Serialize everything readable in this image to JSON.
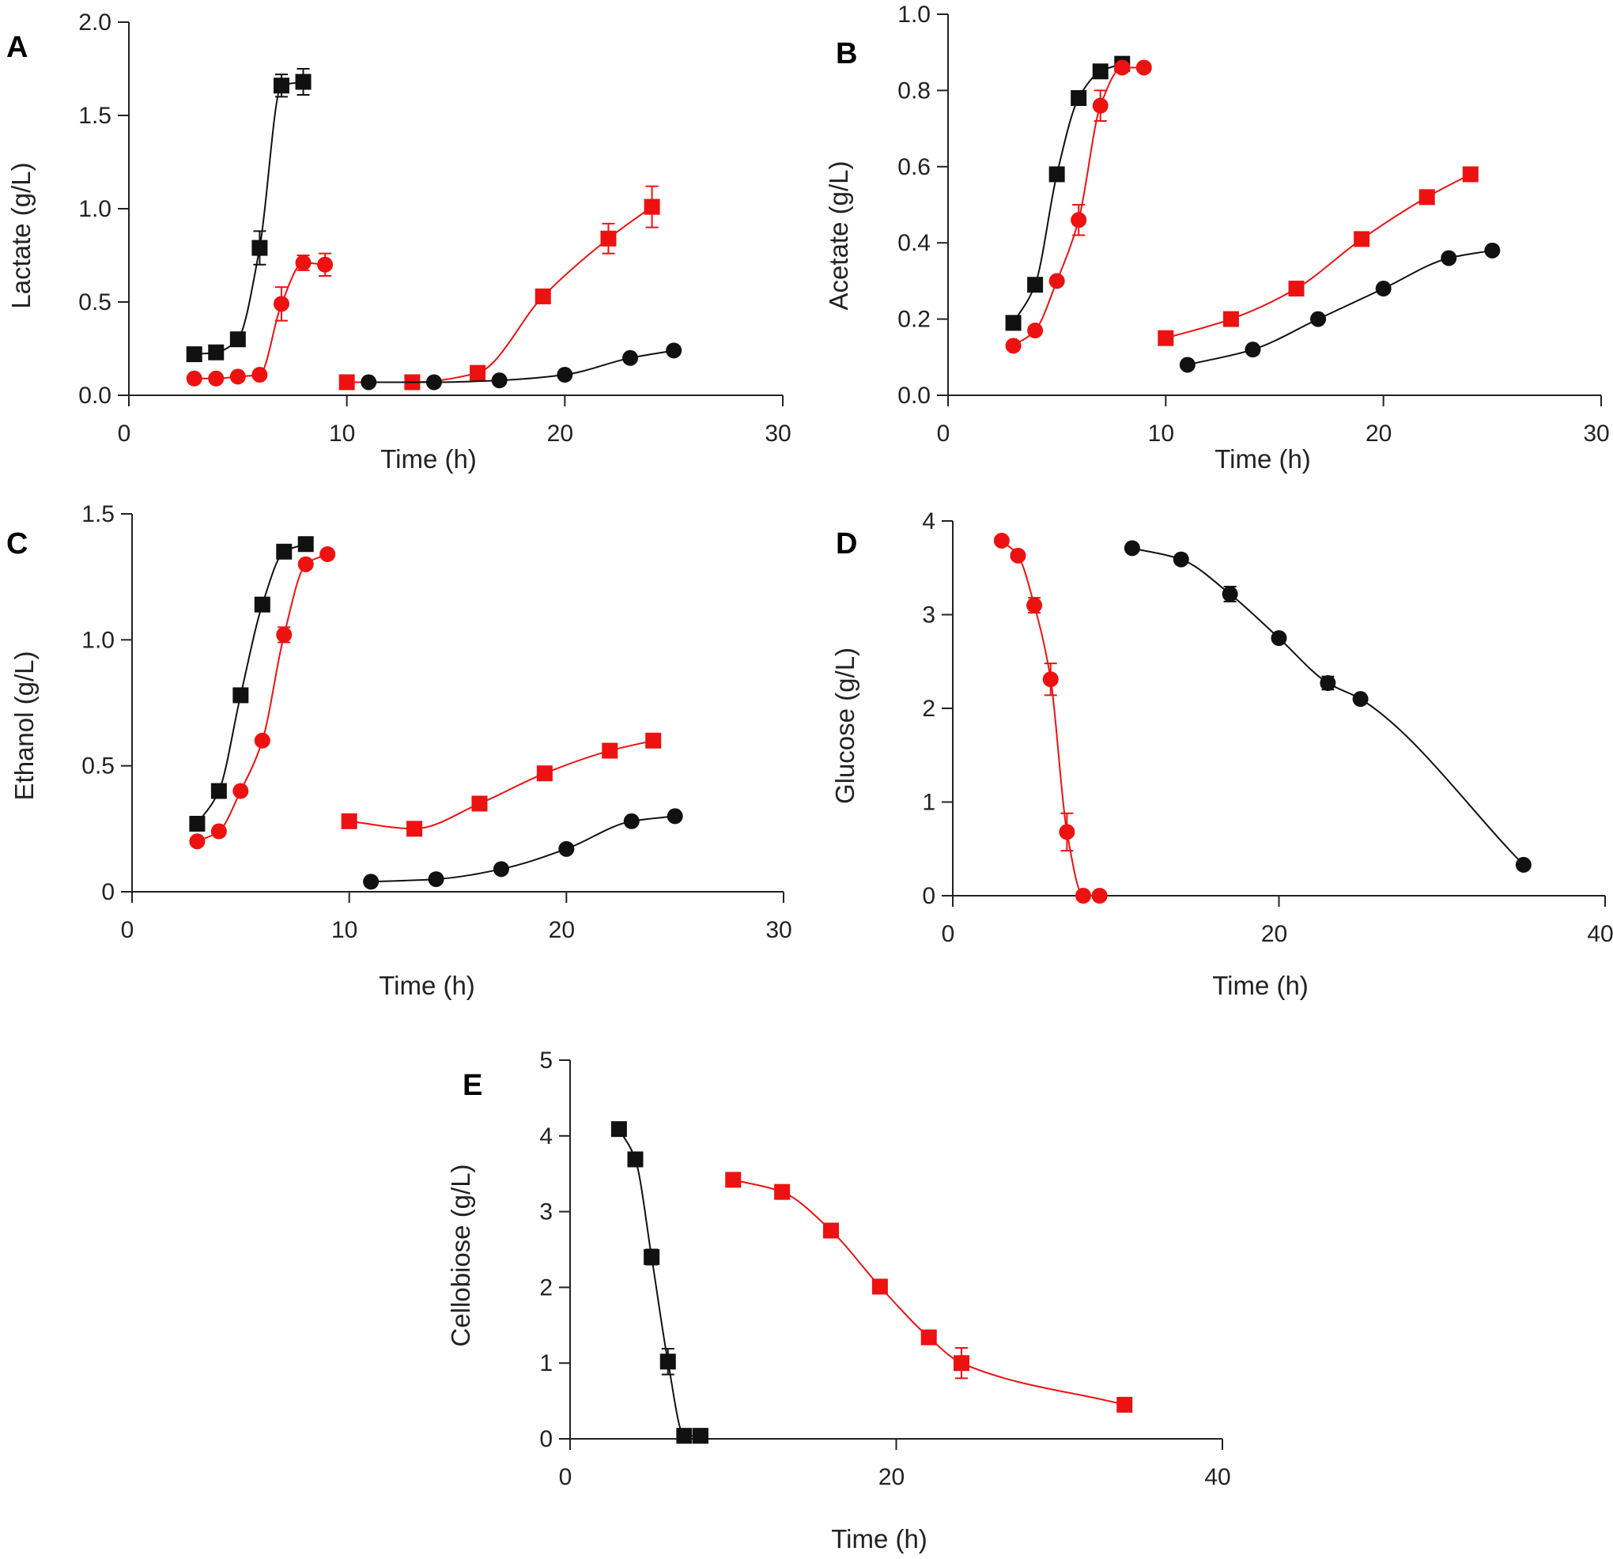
{
  "colors": {
    "black": "#111111",
    "red": "#ee1111"
  },
  "chart_data": [
    {
      "panel": "A",
      "type": "line",
      "xlabel": "Time (h)",
      "ylabel": "Lactate (g/L)",
      "xlim": [
        0,
        30
      ],
      "ylim": [
        0,
        2.0
      ],
      "xticks": [
        "0",
        "10",
        "20",
        "30"
      ],
      "yticks": [
        "0.0",
        "0.5",
        "1.0",
        "1.5",
        "2.0"
      ],
      "series": [
        {
          "name": "black-squares",
          "color": "#111111",
          "marker": "square",
          "x": [
            3,
            4,
            5,
            6,
            7,
            8
          ],
          "y": [
            0.22,
            0.23,
            0.3,
            0.79,
            1.66,
            1.68
          ],
          "err": [
            0,
            0,
            0.03,
            0.09,
            0.06,
            0.07
          ]
        },
        {
          "name": "red-circles",
          "color": "#ee1111",
          "marker": "circle",
          "x": [
            3,
            4,
            5,
            6,
            7,
            8,
            9
          ],
          "y": [
            0.09,
            0.09,
            0.1,
            0.11,
            0.49,
            0.71,
            0.7
          ],
          "err": [
            0,
            0,
            0,
            0,
            0.09,
            0.04,
            0.06
          ]
        },
        {
          "name": "red-squares",
          "color": "#ee1111",
          "marker": "square",
          "x": [
            10,
            13,
            16,
            19,
            22,
            24
          ],
          "y": [
            0.07,
            0.07,
            0.12,
            0.53,
            0.84,
            1.01
          ],
          "err": [
            0,
            0,
            0,
            0,
            0.08,
            0.11
          ]
        },
        {
          "name": "black-circles",
          "color": "#111111",
          "marker": "circle",
          "x": [
            11,
            14,
            17,
            20,
            23,
            25
          ],
          "y": [
            0.07,
            0.07,
            0.08,
            0.11,
            0.2,
            0.24
          ],
          "err": [
            0,
            0,
            0,
            0,
            0,
            0
          ]
        }
      ]
    },
    {
      "panel": "B",
      "type": "line",
      "xlabel": "Time (h)",
      "ylabel": "Acetate (g/L)",
      "xlim": [
        0,
        30
      ],
      "ylim": [
        0,
        1.0
      ],
      "xticks": [
        "0",
        "10",
        "20",
        "30"
      ],
      "yticks": [
        "0.0",
        "0.2",
        "0.4",
        "0.6",
        "0.8",
        "1.0"
      ],
      "series": [
        {
          "name": "black-squares",
          "color": "#111111",
          "marker": "square",
          "x": [
            3,
            4,
            5,
            6,
            7,
            8
          ],
          "y": [
            0.19,
            0.29,
            0.58,
            0.78,
            0.85,
            0.87
          ],
          "err": [
            0,
            0,
            0,
            0,
            0,
            0
          ]
        },
        {
          "name": "red-circles",
          "color": "#ee1111",
          "marker": "circle",
          "x": [
            3,
            4,
            5,
            6,
            7,
            8,
            9
          ],
          "y": [
            0.13,
            0.17,
            0.3,
            0.46,
            0.76,
            0.86,
            0.86
          ],
          "err": [
            0,
            0,
            0,
            0.04,
            0.04,
            0,
            0
          ]
        },
        {
          "name": "red-squares",
          "color": "#ee1111",
          "marker": "square",
          "x": [
            10,
            13,
            16,
            19,
            22,
            24
          ],
          "y": [
            0.15,
            0.2,
            0.28,
            0.41,
            0.52,
            0.58
          ],
          "err": [
            0,
            0,
            0,
            0,
            0,
            0
          ]
        },
        {
          "name": "black-circles",
          "color": "#111111",
          "marker": "circle",
          "x": [
            11,
            14,
            17,
            20,
            23,
            25
          ],
          "y": [
            0.08,
            0.12,
            0.2,
            0.28,
            0.36,
            0.38
          ],
          "err": [
            0,
            0,
            0,
            0,
            0,
            0
          ]
        }
      ]
    },
    {
      "panel": "C",
      "type": "line",
      "xlabel": "Time (h)",
      "ylabel": "Ethanol (g/L)",
      "xlim": [
        0,
        30
      ],
      "ylim": [
        0,
        1.5
      ],
      "xticks": [
        "0",
        "10",
        "20",
        "30"
      ],
      "yticks": [
        "0",
        "0.5",
        "1.0",
        "1.5"
      ],
      "series": [
        {
          "name": "black-squares",
          "color": "#111111",
          "marker": "square",
          "x": [
            3,
            4,
            5,
            6,
            7,
            8
          ],
          "y": [
            0.27,
            0.4,
            0.78,
            1.14,
            1.35,
            1.38
          ],
          "err": [
            0,
            0,
            0,
            0,
            0,
            0
          ]
        },
        {
          "name": "red-circles",
          "color": "#ee1111",
          "marker": "circle",
          "x": [
            3,
            4,
            5,
            6,
            7,
            8,
            9
          ],
          "y": [
            0.2,
            0.24,
            0.4,
            0.6,
            1.02,
            1.3,
            1.34
          ],
          "err": [
            0,
            0,
            0,
            0,
            0.03,
            0,
            0
          ]
        },
        {
          "name": "red-squares",
          "color": "#ee1111",
          "marker": "square",
          "x": [
            10,
            13,
            16,
            19,
            22,
            24
          ],
          "y": [
            0.28,
            0.25,
            0.35,
            0.47,
            0.56,
            0.6
          ],
          "err": [
            0,
            0,
            0,
            0,
            0,
            0
          ]
        },
        {
          "name": "black-circles",
          "color": "#111111",
          "marker": "circle",
          "x": [
            11,
            14,
            17,
            20,
            23,
            25
          ],
          "y": [
            0.04,
            0.05,
            0.09,
            0.17,
            0.28,
            0.3
          ],
          "err": [
            0,
            0,
            0,
            0,
            0,
            0
          ]
        }
      ]
    },
    {
      "panel": "D",
      "type": "line",
      "xlabel": "Time (h)",
      "ylabel": "Glucose (g/L)",
      "xlim": [
        0,
        40
      ],
      "ylim": [
        0,
        4
      ],
      "xticks": [
        "0",
        "20",
        "40"
      ],
      "yticks": [
        "0",
        "1",
        "2",
        "3",
        "4"
      ],
      "series": [
        {
          "name": "red-circles",
          "color": "#ee1111",
          "marker": "circle",
          "x": [
            3,
            4,
            5,
            6,
            7,
            8,
            9
          ],
          "y": [
            3.79,
            3.63,
            3.1,
            2.31,
            0.68,
            0.0,
            0.0
          ],
          "err": [
            0,
            0,
            0.08,
            0.17,
            0.2,
            0,
            0
          ]
        },
        {
          "name": "black-circles",
          "color": "#111111",
          "marker": "circle",
          "x": [
            11,
            14,
            17,
            20,
            23,
            25,
            35
          ],
          "y": [
            3.71,
            3.59,
            3.22,
            2.75,
            2.27,
            2.1,
            0.33
          ],
          "err": [
            0,
            0,
            0.08,
            0,
            0.07,
            0,
            0
          ]
        }
      ]
    },
    {
      "panel": "E",
      "type": "line",
      "xlabel": "Time (h)",
      "ylabel": "Cellobiose (g/L)",
      "xlim": [
        0,
        40
      ],
      "ylim": [
        0,
        5
      ],
      "xticks": [
        "0",
        "20",
        "40"
      ],
      "yticks": [
        "0",
        "1",
        "2",
        "3",
        "4",
        "5"
      ],
      "series": [
        {
          "name": "black-squares",
          "color": "#111111",
          "marker": "square",
          "x": [
            3,
            4,
            5,
            6,
            7,
            8
          ],
          "y": [
            4.09,
            3.69,
            2.4,
            1.02,
            0.04,
            0.04
          ],
          "err": [
            0,
            0,
            0.1,
            0.17,
            0,
            0
          ]
        },
        {
          "name": "red-squares",
          "color": "#ee1111",
          "marker": "square",
          "x": [
            10,
            13,
            16,
            19,
            22,
            24,
            34
          ],
          "y": [
            3.42,
            3.26,
            2.75,
            2.01,
            1.34,
            1.0,
            0.45
          ],
          "err": [
            0,
            0,
            0,
            0,
            0,
            0.2,
            0
          ]
        }
      ]
    }
  ]
}
